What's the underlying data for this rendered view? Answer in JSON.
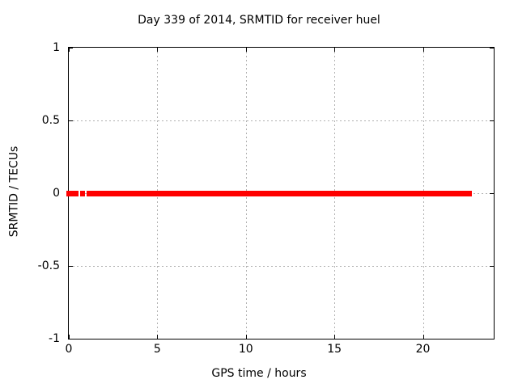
{
  "chart_data": {
    "type": "scatter",
    "title": "Day 339 of 2014, SRMTID for receiver huel",
    "xlabel": "GPS time / hours",
    "ylabel": "SRMTID / TECUs",
    "xlim": [
      0,
      24
    ],
    "ylim": [
      -1,
      1
    ],
    "xticks": {
      "values": [
        0,
        5,
        10,
        15,
        20
      ],
      "labels": [
        "0",
        "5",
        "10",
        "15",
        "20"
      ]
    },
    "yticks": {
      "values": [
        -1,
        -0.5,
        0,
        0.5,
        1
      ],
      "labels": [
        "-1",
        "-0.5",
        "0",
        "0.5",
        "1"
      ]
    },
    "grid": {
      "show": true,
      "style": "dashed",
      "x_values": [
        5,
        10,
        15,
        20
      ],
      "y_values": [
        -0.5,
        0,
        0.5
      ]
    },
    "legend": "none",
    "series": [
      {
        "name": "SRMTID",
        "marker": "filled-square",
        "y_value": 0,
        "x_segments": [
          [
            0.0,
            0.55
          ],
          [
            0.64,
            0.91
          ],
          [
            1.01,
            22.77
          ]
        ]
      }
    ]
  },
  "colors": {
    "background": "#ffffff",
    "axis": "#000000",
    "text": "#000000",
    "series": "#ff0000",
    "grid": "#b0b0b0"
  }
}
